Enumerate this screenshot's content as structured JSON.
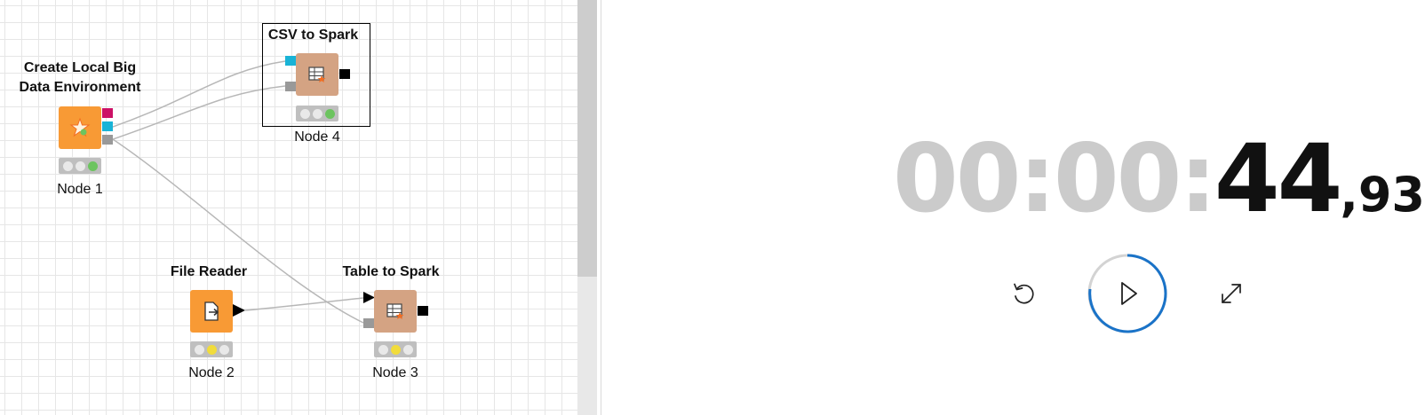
{
  "workflow": {
    "nodes": {
      "create_env": {
        "title_line1": "Create Local Big",
        "title_line2": "Data Environment",
        "label": "Node 1",
        "status": "executed"
      },
      "csv_to_spark": {
        "title": "CSV to Spark",
        "label": "Node 4",
        "status": "executed"
      },
      "file_reader": {
        "title": "File Reader",
        "label": "Node 2",
        "status": "configured"
      },
      "table_to_spark": {
        "title": "Table to Spark",
        "label": "Node 3",
        "status": "configured"
      }
    },
    "colors": {
      "node_orange": "#f89a35",
      "node_tan": "#d4a383",
      "port_magenta": "#cc1166",
      "port_cyan": "#19b3d6",
      "port_gray": "#999999",
      "status_green": "#6cc45f",
      "status_yellow": "#f1dc3b"
    }
  },
  "stopwatch": {
    "time_hms": "00:00:",
    "time_seconds": "44",
    "time_hundredths": ",93",
    "progress_accent": "#1a73c8",
    "icons": {
      "reset": "reset-icon",
      "play": "play-icon",
      "expand": "expand-icon"
    }
  }
}
